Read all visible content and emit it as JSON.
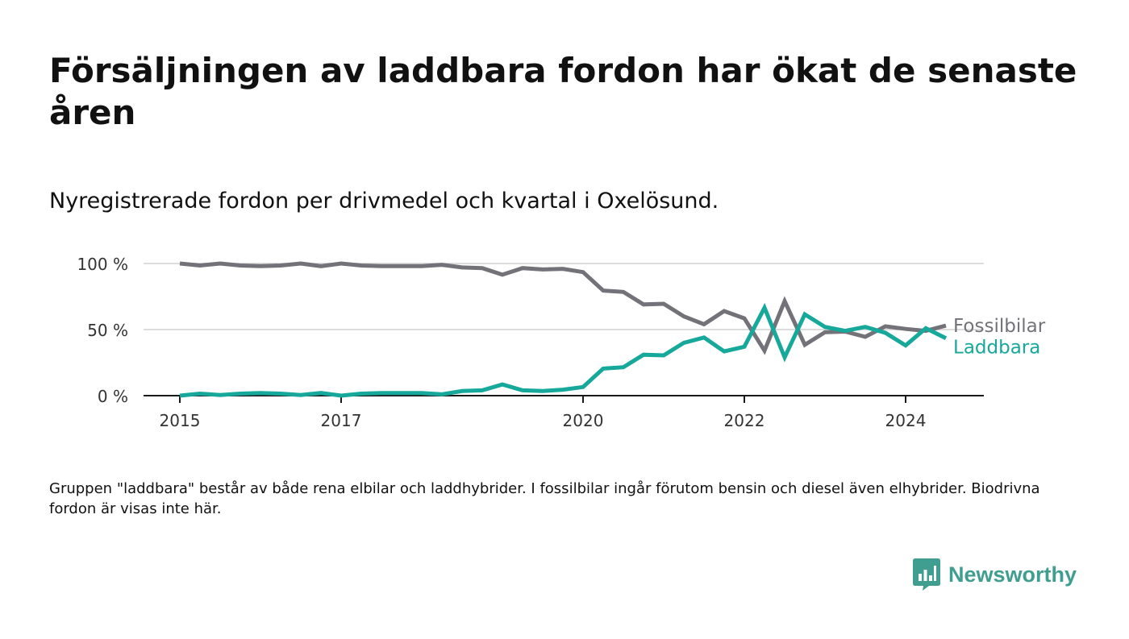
{
  "title": "Försäljningen av laddbara fordon har ökat de senaste åren",
  "subtitle": "Nyregistrerade fordon per drivmedel och kvartal i Oxelösund.",
  "note": "Gruppen \"laddbara\" består av både rena elbilar och laddhybrider. I fossilbilar ingår förutom bensin och diesel även elhybrider. Biodrivna fordon är visas inte här.",
  "brand": {
    "name": "Newsworthy",
    "icon": "newsworthy-logo-icon",
    "color": "#3f9e8f"
  },
  "chart_data": {
    "type": "line",
    "y_ticks": [
      {
        "value": 0,
        "label": "0 %"
      },
      {
        "value": 50,
        "label": "50 %"
      },
      {
        "value": 100,
        "label": "100 %"
      }
    ],
    "x_ticks": [
      {
        "value": 2015,
        "label": "2015"
      },
      {
        "value": 2017,
        "label": "2017"
      },
      {
        "value": 2020,
        "label": "2020"
      },
      {
        "value": 2022,
        "label": "2022"
      },
      {
        "value": 2024,
        "label": "2024"
      }
    ],
    "xlim": [
      2014.55,
      2024.97
    ],
    "ylim": [
      0,
      100
    ],
    "grid": true,
    "legend": "labels at line ends",
    "x": [
      2015.0,
      2015.25,
      2015.5,
      2015.75,
      2016.0,
      2016.25,
      2016.5,
      2016.75,
      2017.0,
      2017.25,
      2017.5,
      2017.75,
      2018.0,
      2018.25,
      2018.5,
      2018.75,
      2019.0,
      2019.25,
      2019.5,
      2019.75,
      2020.0,
      2020.25,
      2020.5,
      2020.75,
      2021.0,
      2021.25,
      2021.5,
      2021.75,
      2022.0,
      2022.25,
      2022.5,
      2022.75,
      2023.0,
      2023.25,
      2023.5,
      2023.75,
      2024.0,
      2024.25,
      2024.5
    ],
    "series": [
      {
        "name": "Fossilbilar",
        "color": "#737278",
        "values": [
          100,
          98.5,
          100,
          98.5,
          98,
          98.5,
          100,
          98,
          100,
          98.5,
          98,
          98,
          98,
          99,
          97,
          96.5,
          91.5,
          96.5,
          95.5,
          96,
          93.5,
          79.5,
          78.5,
          69,
          69.5,
          60,
          54,
          64,
          58.5,
          34,
          71.5,
          38.5,
          48,
          48.5,
          44.5,
          52.5,
          50.5,
          49,
          53
        ]
      },
      {
        "name": "Laddbara",
        "color": "#16a89a",
        "values": [
          0,
          1.5,
          0.5,
          1.5,
          2,
          1.5,
          0.5,
          2,
          0,
          1.5,
          2,
          2,
          2,
          1,
          3.5,
          4,
          8.5,
          4,
          3.5,
          4.5,
          6.5,
          20.5,
          21.5,
          31,
          30.5,
          40,
          44,
          33.5,
          37,
          66.5,
          29,
          61.5,
          52,
          49,
          52,
          47.5,
          38,
          51,
          43.5
        ]
      }
    ]
  }
}
